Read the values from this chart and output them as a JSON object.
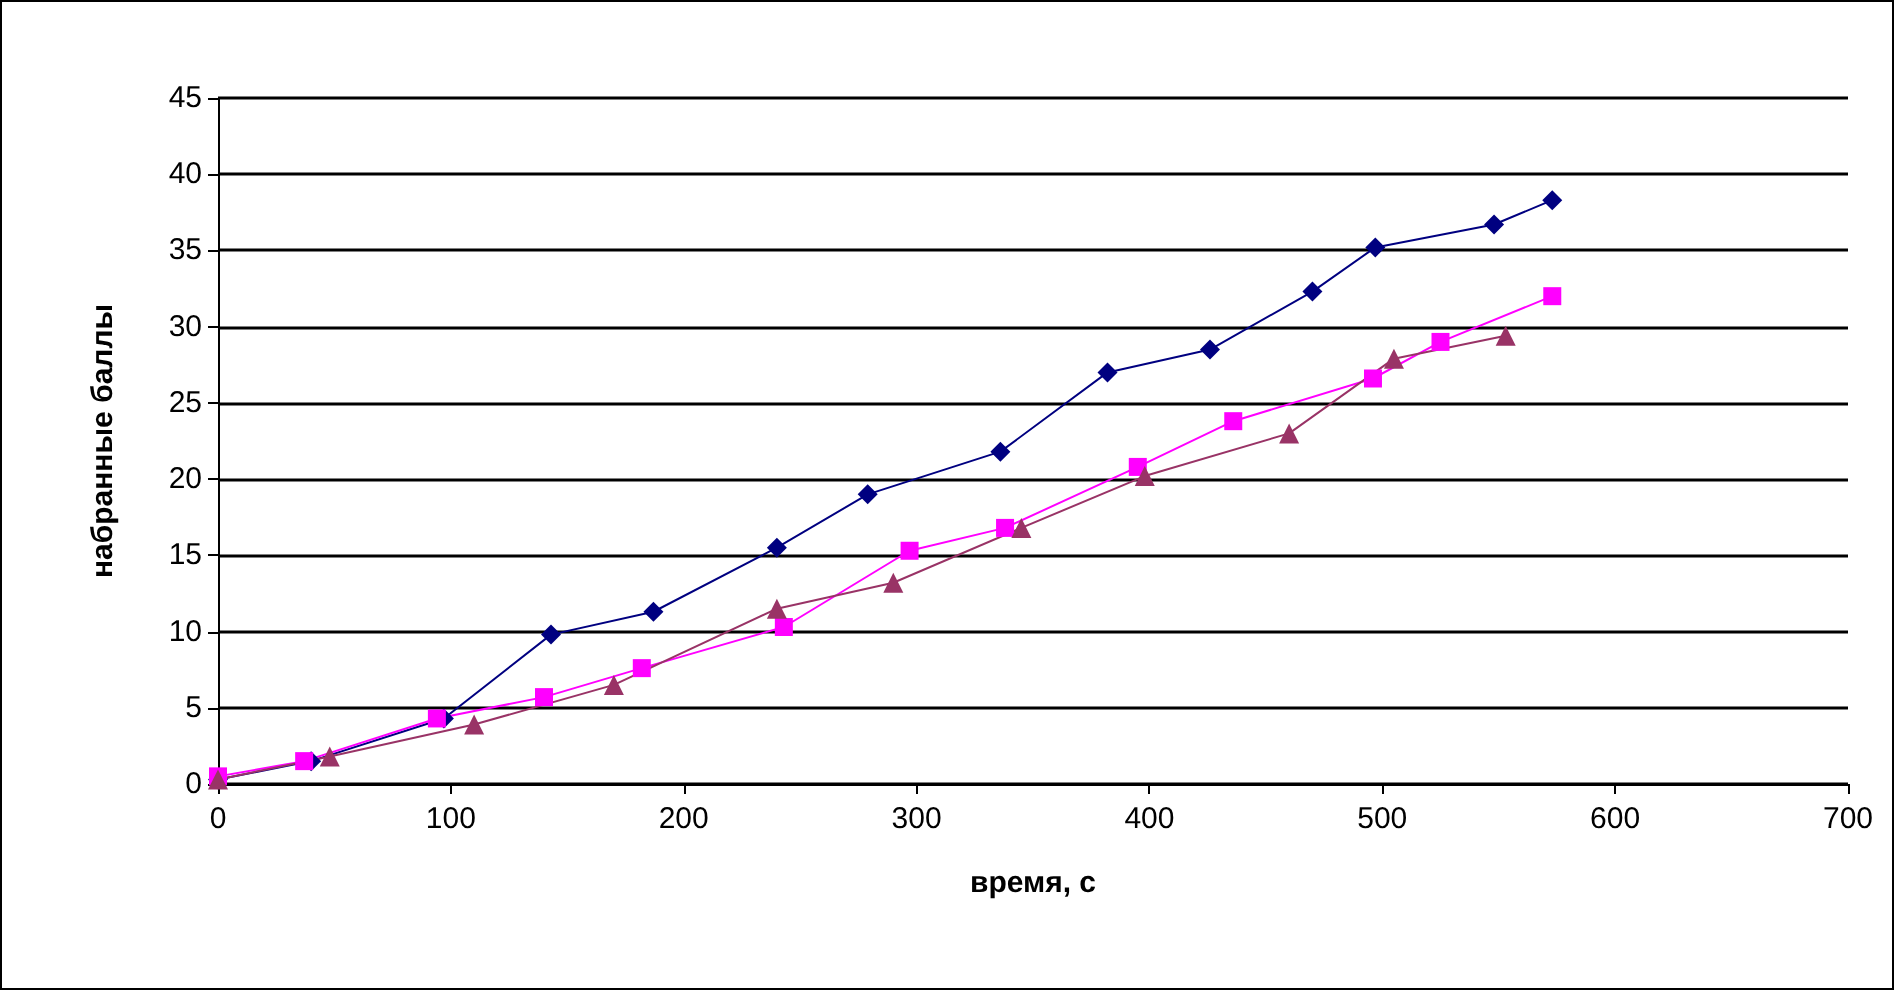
{
  "chart_data": {
    "type": "line",
    "xlabel": "время, с",
    "ylabel": "набранные баллы",
    "xlim": [
      0,
      700
    ],
    "xticks": [
      0,
      100,
      200,
      300,
      400,
      500,
      600,
      700
    ],
    "ylim": [
      0,
      45
    ],
    "yticks": [
      0,
      5,
      10,
      15,
      20,
      25,
      30,
      35,
      40,
      45
    ],
    "grid": "y",
    "series": [
      {
        "color": "#000080",
        "marker": "diamond",
        "x": [
          0,
          40,
          97,
          143,
          187,
          240,
          279,
          336,
          382,
          426,
          470,
          497,
          548,
          573
        ],
        "values": [
          0.3,
          1.5,
          4.3,
          9.8,
          11.3,
          15.5,
          19,
          21.8,
          27,
          28.5,
          32.3,
          35.2,
          36.7,
          38.3
        ]
      },
      {
        "color": "#ff00ff",
        "marker": "square",
        "x": [
          0,
          37,
          94,
          140,
          182,
          243,
          297,
          338,
          395,
          436,
          496,
          525,
          573
        ],
        "values": [
          0.5,
          1.5,
          4.3,
          5.7,
          7.6,
          10.3,
          15.3,
          16.8,
          20.8,
          23.8,
          26.6,
          29,
          32
        ]
      },
      {
        "color": "#993366",
        "marker": "triangle",
        "x": [
          0,
          48,
          110,
          170,
          240,
          290,
          345,
          398,
          460,
          505,
          553
        ],
        "values": [
          0.3,
          1.8,
          3.9,
          6.5,
          11.5,
          13.2,
          16.8,
          20.2,
          23,
          27.9,
          29.4
        ]
      }
    ]
  }
}
